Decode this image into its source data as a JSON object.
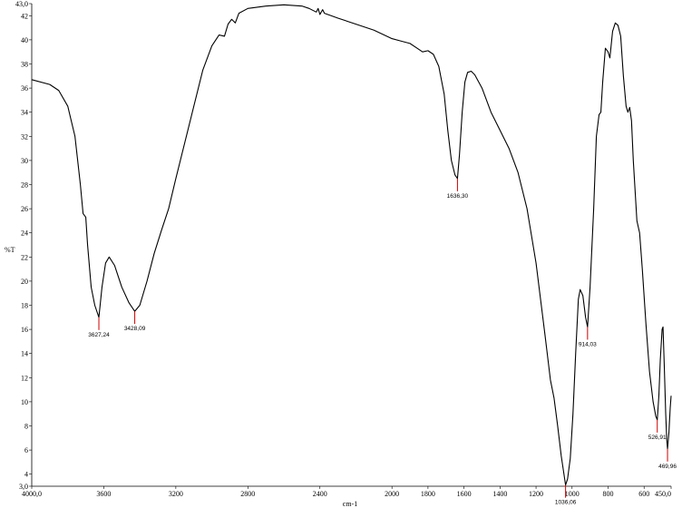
{
  "chart_data": {
    "type": "line",
    "xlabel": "cm-1",
    "ylabel": "%T",
    "xlim": [
      4000.0,
      450.0
    ],
    "ylim": [
      3.0,
      43.0
    ],
    "x_reversed": true,
    "grid": false,
    "x_ticks": [
      {
        "value": 4000,
        "label": "4000,0"
      },
      {
        "value": 3600,
        "label": "3600"
      },
      {
        "value": 3200,
        "label": "3200"
      },
      {
        "value": 2800,
        "label": "2800"
      },
      {
        "value": 2400,
        "label": "2400"
      },
      {
        "value": 2000,
        "label": "2000"
      },
      {
        "value": 1800,
        "label": "1800"
      },
      {
        "value": 1600,
        "label": "1600"
      },
      {
        "value": 1400,
        "label": "1400"
      },
      {
        "value": 1200,
        "label": "1200"
      },
      {
        "value": 1000,
        "label": "1000"
      },
      {
        "value": 800,
        "label": "800"
      },
      {
        "value": 600,
        "label": "600"
      },
      {
        "value": 450,
        "label": "450,0"
      }
    ],
    "y_ticks": [
      {
        "value": 3,
        "label": "3,0"
      },
      {
        "value": 4,
        "label": "4"
      },
      {
        "value": 6,
        "label": "6"
      },
      {
        "value": 8,
        "label": "8"
      },
      {
        "value": 10,
        "label": "10"
      },
      {
        "value": 12,
        "label": "12"
      },
      {
        "value": 14,
        "label": "14"
      },
      {
        "value": 16,
        "label": "16"
      },
      {
        "value": 18,
        "label": "18"
      },
      {
        "value": 20,
        "label": "20"
      },
      {
        "value": 22,
        "label": "22"
      },
      {
        "value": 24,
        "label": "24"
      },
      {
        "value": 26,
        "label": "26"
      },
      {
        "value": 28,
        "label": "28"
      },
      {
        "value": 30,
        "label": "30"
      },
      {
        "value": 32,
        "label": "32"
      },
      {
        "value": 34,
        "label": "34"
      },
      {
        "value": 36,
        "label": "36"
      },
      {
        "value": 38,
        "label": "38"
      },
      {
        "value": 40,
        "label": "40"
      },
      {
        "value": 42,
        "label": "42"
      },
      {
        "value": 43,
        "label": "43,0"
      }
    ],
    "series": [
      {
        "color": "#000000",
        "points": [
          [
            4000,
            36.7
          ],
          [
            3900,
            36.3
          ],
          [
            3850,
            35.8
          ],
          [
            3800,
            34.5
          ],
          [
            3760,
            32.0
          ],
          [
            3730,
            28.0
          ],
          [
            3715,
            25.6
          ],
          [
            3700,
            25.3
          ],
          [
            3690,
            23.0
          ],
          [
            3670,
            19.5
          ],
          [
            3650,
            18.0
          ],
          [
            3627.24,
            17.0
          ],
          [
            3610,
            19.5
          ],
          [
            3590,
            21.5
          ],
          [
            3570,
            22.0
          ],
          [
            3540,
            21.3
          ],
          [
            3500,
            19.5
          ],
          [
            3460,
            18.2
          ],
          [
            3428.09,
            17.5
          ],
          [
            3400,
            18.0
          ],
          [
            3360,
            20.0
          ],
          [
            3320,
            22.3
          ],
          [
            3280,
            24.2
          ],
          [
            3240,
            26.0
          ],
          [
            3200,
            28.5
          ],
          [
            3150,
            31.5
          ],
          [
            3100,
            34.5
          ],
          [
            3050,
            37.5
          ],
          [
            3000,
            39.5
          ],
          [
            2960,
            40.4
          ],
          [
            2930,
            40.3
          ],
          [
            2910,
            41.3
          ],
          [
            2890,
            41.7
          ],
          [
            2870,
            41.4
          ],
          [
            2850,
            42.2
          ],
          [
            2800,
            42.6
          ],
          [
            2700,
            42.8
          ],
          [
            2600,
            42.9
          ],
          [
            2500,
            42.8
          ],
          [
            2460,
            42.6
          ],
          [
            2420,
            42.3
          ],
          [
            2410,
            42.6
          ],
          [
            2400,
            42.1
          ],
          [
            2385,
            42.5
          ],
          [
            2375,
            42.2
          ],
          [
            2300,
            41.8
          ],
          [
            2200,
            41.3
          ],
          [
            2100,
            40.8
          ],
          [
            2000,
            40.1
          ],
          [
            1950,
            39.9
          ],
          [
            1900,
            39.7
          ],
          [
            1860,
            39.3
          ],
          [
            1830,
            39.0
          ],
          [
            1800,
            39.1
          ],
          [
            1770,
            38.8
          ],
          [
            1740,
            37.8
          ],
          [
            1710,
            35.5
          ],
          [
            1690,
            32.5
          ],
          [
            1670,
            30.0
          ],
          [
            1650,
            28.8
          ],
          [
            1636.3,
            28.5
          ],
          [
            1625,
            30.5
          ],
          [
            1610,
            34.0
          ],
          [
            1595,
            36.5
          ],
          [
            1580,
            37.3
          ],
          [
            1560,
            37.4
          ],
          [
            1540,
            37.1
          ],
          [
            1500,
            36.0
          ],
          [
            1450,
            34.0
          ],
          [
            1400,
            32.5
          ],
          [
            1350,
            31.0
          ],
          [
            1300,
            29.0
          ],
          [
            1250,
            26.0
          ],
          [
            1200,
            21.5
          ],
          [
            1150,
            15.5
          ],
          [
            1120,
            11.8
          ],
          [
            1100,
            10.3
          ],
          [
            1080,
            8.0
          ],
          [
            1060,
            5.5
          ],
          [
            1045,
            4.0
          ],
          [
            1036.06,
            3.1
          ],
          [
            1025,
            3.6
          ],
          [
            1010,
            5.3
          ],
          [
            995,
            9.0
          ],
          [
            980,
            14.0
          ],
          [
            965,
            18.5
          ],
          [
            955,
            19.3
          ],
          [
            940,
            18.8
          ],
          [
            925,
            17.0
          ],
          [
            914.03,
            16.2
          ],
          [
            900,
            19.5
          ],
          [
            880,
            26.0
          ],
          [
            865,
            32.0
          ],
          [
            850,
            33.8
          ],
          [
            840,
            34.0
          ],
          [
            830,
            36.5
          ],
          [
            815,
            39.3
          ],
          [
            800,
            39.0
          ],
          [
            790,
            38.5
          ],
          [
            775,
            40.7
          ],
          [
            760,
            41.4
          ],
          [
            745,
            41.2
          ],
          [
            730,
            40.3
          ],
          [
            715,
            37.0
          ],
          [
            700,
            34.5
          ],
          [
            690,
            34.0
          ],
          [
            680,
            34.4
          ],
          [
            670,
            33.3
          ],
          [
            660,
            30.0
          ],
          [
            640,
            25.0
          ],
          [
            625,
            24.0
          ],
          [
            610,
            21.0
          ],
          [
            590,
            16.5
          ],
          [
            570,
            12.5
          ],
          [
            550,
            10.0
          ],
          [
            535,
            8.8
          ],
          [
            526.91,
            8.5
          ],
          [
            518,
            10.5
          ],
          [
            510,
            13.5
          ],
          [
            500,
            16.0
          ],
          [
            495,
            16.2
          ],
          [
            488,
            13.0
          ],
          [
            480,
            9.0
          ],
          [
            474,
            6.8
          ],
          [
            469.96,
            6.1
          ],
          [
            462,
            7.5
          ],
          [
            455,
            9.5
          ],
          [
            450,
            10.5
          ]
        ]
      }
    ],
    "annotations": [
      {
        "x": 3627.24,
        "y": 17.0,
        "label": "3627,24"
      },
      {
        "x": 3428.09,
        "y": 17.5,
        "label": "3428,09"
      },
      {
        "x": 1636.3,
        "y": 28.5,
        "label": "1636,30"
      },
      {
        "x": 1036.06,
        "y": 3.1,
        "label": "1036,06"
      },
      {
        "x": 914.03,
        "y": 16.2,
        "label": "914,03"
      },
      {
        "x": 526.91,
        "y": 8.5,
        "label": "526,91"
      },
      {
        "x": 469.96,
        "y": 6.1,
        "label": "469,96"
      }
    ],
    "line_color": "#000000",
    "marker_color": "#d00000"
  }
}
